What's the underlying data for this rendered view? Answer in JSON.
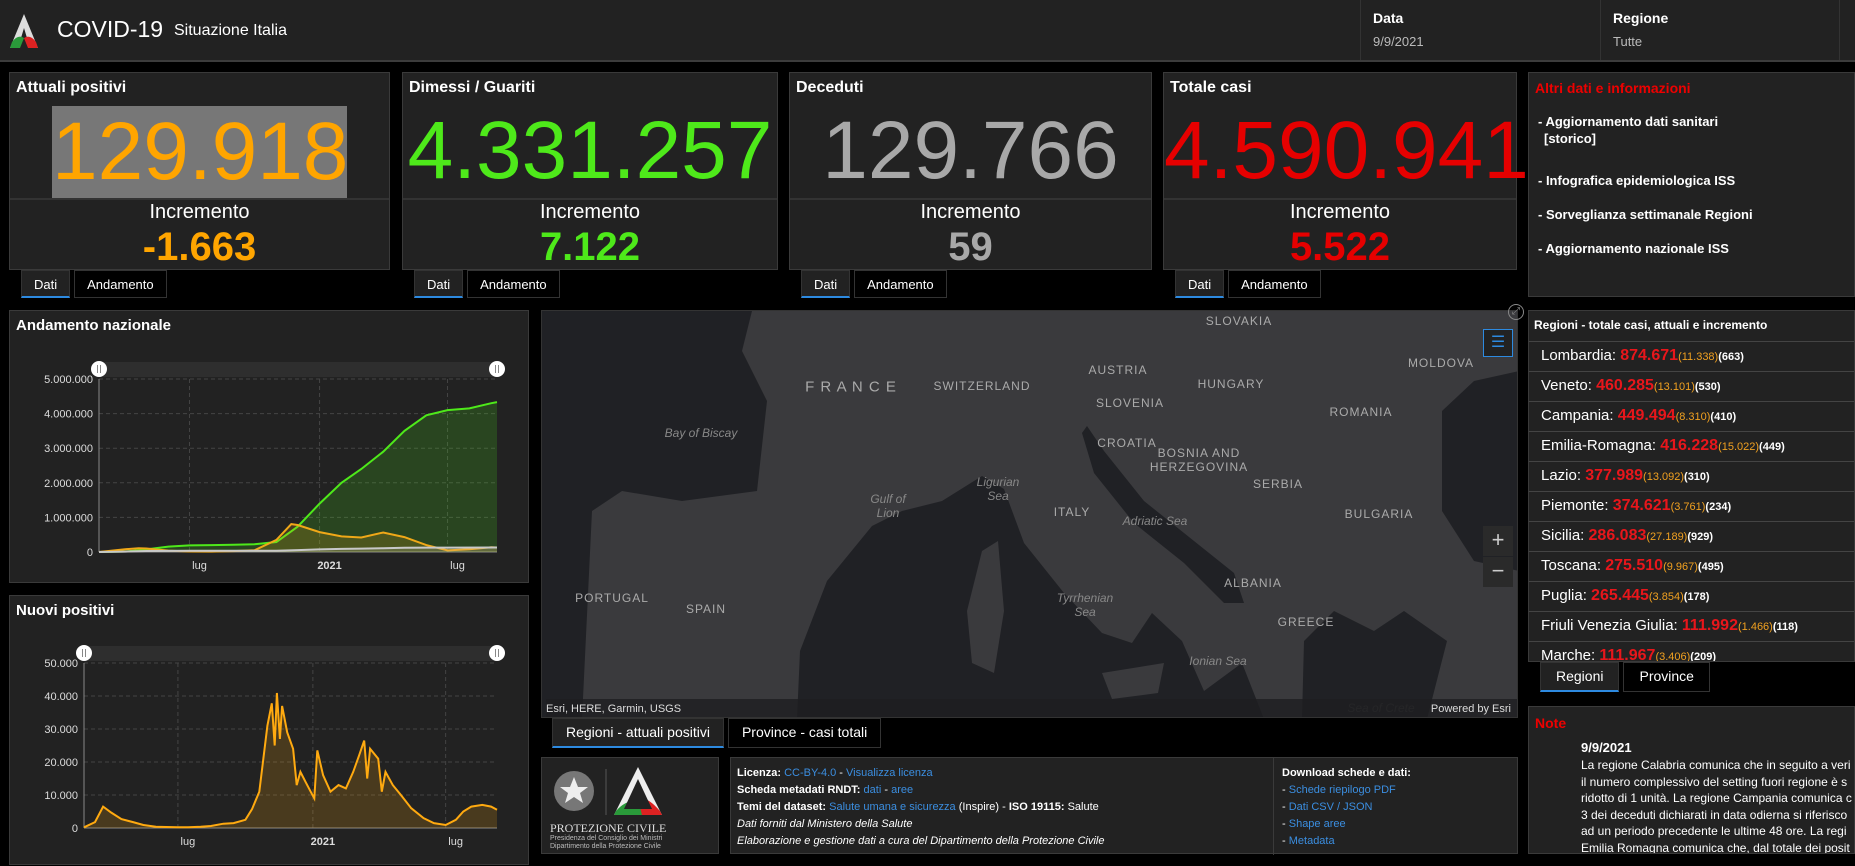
{
  "header": {
    "title": "COVID-19",
    "subtitle": "Situazione Italia",
    "date_label": "Data",
    "date_value": "9/9/2021",
    "region_label": "Regione",
    "region_value": "Tutte"
  },
  "colors": {
    "attuali": "#ffa500",
    "guariti": "#4ee91a",
    "deceduti": "#a8a8a8",
    "totale": "#e60000",
    "accent": "#2d8ae0"
  },
  "cards": [
    {
      "title": "Attuali positivi",
      "value": "129.918",
      "inc_label": "Incremento",
      "inc_value": "-1.663",
      "tabs": [
        "Dati",
        "Andamento"
      ]
    },
    {
      "title": "Dimessi / Guariti",
      "value": "4.331.257",
      "inc_label": "Incremento",
      "inc_value": "7.122",
      "tabs": [
        "Dati",
        "Andamento"
      ]
    },
    {
      "title": "Deceduti",
      "value": "129.766",
      "inc_label": "Incremento",
      "inc_value": "59",
      "tabs": [
        "Dati",
        "Andamento"
      ]
    },
    {
      "title": "Totale casi",
      "value": "4.590.941",
      "inc_label": "Incremento",
      "inc_value": "5.522",
      "tabs": [
        "Dati",
        "Andamento"
      ]
    }
  ],
  "other_info": {
    "title": "Altri dati e informazioni",
    "items": [
      "- Aggiornamento dati sanitari",
      "[storico]",
      "- Infografica epidemiologica ISS",
      "- Sorveglianza settimanale Regioni",
      "- Aggiornamento nazionale ISS"
    ]
  },
  "regions": {
    "title": "Regioni - totale casi, attuali e incremento",
    "tabs": [
      "Regioni",
      "Province"
    ],
    "rows": [
      {
        "name": "Lombardia:",
        "total": "874.671",
        "attuali": "(11.338)",
        "inc": "(663)"
      },
      {
        "name": "Veneto:",
        "total": "460.285",
        "attuali": "(13.101)",
        "inc": "(530)"
      },
      {
        "name": "Campania:",
        "total": "449.494",
        "attuali": "(8.310)",
        "inc": "(410)"
      },
      {
        "name": "Emilia-Romagna:",
        "total": "416.228",
        "attuali": "(15.022)",
        "inc": "(449)"
      },
      {
        "name": "Lazio:",
        "total": "377.989",
        "attuali": "(13.092)",
        "inc": "(310)"
      },
      {
        "name": "Piemonte:",
        "total": "374.621",
        "attuali": "(3.761)",
        "inc": "(234)"
      },
      {
        "name": "Sicilia:",
        "total": "286.083",
        "attuali": "(27.189)",
        "inc": "(929)"
      },
      {
        "name": "Toscana:",
        "total": "275.510",
        "attuali": "(9.967)",
        "inc": "(495)"
      },
      {
        "name": "Puglia:",
        "total": "265.445",
        "attuali": "(3.854)",
        "inc": "(178)"
      },
      {
        "name": "Friuli Venezia Giulia:",
        "total": "111.992",
        "attuali": "(1.466)",
        "inc": "(118)"
      },
      {
        "name": "Marche:",
        "total": "111.967",
        "attuali": "(3.406)",
        "inc": "(209)"
      }
    ]
  },
  "map": {
    "attribution": "Esri, HERE, Garmin, USGS",
    "powered": "Powered by Esri",
    "tabs": [
      "Regioni - attuali positivi",
      "Province - casi totali"
    ],
    "labels": [
      "SLOVAKIA",
      "AUSTRIA",
      "F R A N C E",
      "SWITZERLAND",
      "HUNGARY",
      "MOLDOVA",
      "SLOVENIA",
      "ROMANIA",
      "CROATIA",
      "BOSNIA AND HERZEGOVINA",
      "SERBIA",
      "ITALY",
      "BULGARIA",
      "ALBANIA",
      "PORTUGAL",
      "SPAIN",
      "GREECE"
    ],
    "seas": [
      "Bay of Biscay",
      "Ligurian Sea",
      "Gulf of Lion",
      "Adriatic Sea",
      "Tyrrhenian Sea",
      "Ionian Sea",
      "Sea of Crete"
    ]
  },
  "logo": {
    "name": "PROTEZIONE CIVILE",
    "line1": "Presidenza del Consiglio dei Ministri",
    "line2": "Dipartimento della Protezione Civile"
  },
  "info": {
    "lic_label": "Licenza:",
    "lic_link": "CC-BY-4.0",
    "sep": " - ",
    "lic_view": "Visualizza licenza",
    "rndt_label": "Scheda metadati RNDT:",
    "rndt_dati": "dati",
    "rndt_aree": "aree",
    "temi_label": "Temi del dataset:",
    "temi_link": "Salute umana e sicurezza",
    "temi_rest": " (Inspire) - ",
    "iso_label": "ISO 19115:",
    "iso_val": " Salute",
    "line4": "Dati forniti dal Ministero della Salute",
    "line5": "Elaborazione e gestione dati a cura del Dipartimento della Protezione Civile",
    "dl_title": "Download schede e dati:",
    "dl_links": [
      "Schede riepilogo PDF",
      "Dati CSV / JSON",
      "Shape aree",
      "Metadata"
    ]
  },
  "note": {
    "title": "Note",
    "date": "9/9/2021",
    "lines": [
      "La regione Calabria comunica che in seguito a veri",
      "il numero complessivo del setting fuori regione è s",
      "ridotto di 1 unità. La regione Campania comunica c",
      "3 dei deceduti dichiarati in data odierna si riferisco",
      "ad un periodo precedente le ultime 48 ore. La regi",
      "Emilia Romagna comunica che, dal totale dei posit"
    ]
  },
  "chart_data": [
    {
      "type": "area",
      "title": "Andamento nazionale",
      "ylim": [
        0,
        5000000
      ],
      "yticks": [
        "0",
        "1.000.000",
        "2.000.000",
        "3.000.000",
        "4.000.000",
        "5.000.000"
      ],
      "ytick_values": [
        0,
        1000000,
        2000000,
        3000000,
        4000000,
        5000000
      ],
      "xlim": [
        "2020-02-24",
        "2021-09-09"
      ],
      "xticks": [
        {
          "date": "2020-07-01",
          "label": "lug"
        },
        {
          "date": "2021-01-01",
          "label": "2021"
        },
        {
          "date": "2021-07-01",
          "label": "lug"
        }
      ],
      "grid": true,
      "series": [
        {
          "color": "#4ee91a",
          "points": [
            [
              "2020-02-24",
              0
            ],
            [
              "2020-04-01",
              15000
            ],
            [
              "2020-05-01",
              75000
            ],
            [
              "2020-06-01",
              155000
            ],
            [
              "2020-07-01",
              190000
            ],
            [
              "2020-08-01",
              200000
            ],
            [
              "2020-09-01",
              208000
            ],
            [
              "2020-10-01",
              225000
            ],
            [
              "2020-11-01",
              290000
            ],
            [
              "2020-12-01",
              730000
            ],
            [
              "2021-01-01",
              1400000
            ],
            [
              "2021-02-01",
              2000000
            ],
            [
              "2021-03-01",
              2400000
            ],
            [
              "2021-04-01",
              2900000
            ],
            [
              "2021-05-01",
              3500000
            ],
            [
              "2021-06-01",
              3950000
            ],
            [
              "2021-07-01",
              4100000
            ],
            [
              "2021-08-01",
              4150000
            ],
            [
              "2021-09-01",
              4300000
            ],
            [
              "2021-09-09",
              4331257
            ]
          ]
        },
        {
          "color": "#f0a818",
          "points": [
            [
              "2020-02-24",
              200
            ],
            [
              "2020-04-01",
              80000
            ],
            [
              "2020-04-20",
              108000
            ],
            [
              "2020-05-01",
              100000
            ],
            [
              "2020-06-01",
              40000
            ],
            [
              "2020-07-01",
              15000
            ],
            [
              "2020-08-01",
              12000
            ],
            [
              "2020-09-01",
              27000
            ],
            [
              "2020-10-01",
              50000
            ],
            [
              "2020-11-01",
              350000
            ],
            [
              "2020-11-22",
              805000
            ],
            [
              "2020-12-01",
              780000
            ],
            [
              "2021-01-01",
              575000
            ],
            [
              "2021-02-01",
              450000
            ],
            [
              "2021-03-01",
              420000
            ],
            [
              "2021-04-01",
              565000
            ],
            [
              "2021-05-01",
              430000
            ],
            [
              "2021-06-01",
              200000
            ],
            [
              "2021-07-01",
              45000
            ],
            [
              "2021-08-01",
              80000
            ],
            [
              "2021-09-01",
              135000
            ],
            [
              "2021-09-09",
              129918
            ]
          ]
        },
        {
          "color": "#c8c8c8",
          "points": [
            [
              "2020-02-24",
              0
            ],
            [
              "2020-04-01",
              13000
            ],
            [
              "2020-05-01",
              28000
            ],
            [
              "2020-06-01",
              33000
            ],
            [
              "2020-07-01",
              35000
            ],
            [
              "2020-10-01",
              36000
            ],
            [
              "2020-11-01",
              39000
            ],
            [
              "2020-12-01",
              56000
            ],
            [
              "2021-01-01",
              74000
            ],
            [
              "2021-02-01",
              89000
            ],
            [
              "2021-03-01",
              98000
            ],
            [
              "2021-04-01",
              110000
            ],
            [
              "2021-05-01",
              121000
            ],
            [
              "2021-06-01",
              126000
            ],
            [
              "2021-07-01",
              127600
            ],
            [
              "2021-09-09",
              129766
            ]
          ]
        }
      ]
    },
    {
      "type": "area",
      "title": "Nuovi positivi",
      "ylim": [
        0,
        50000
      ],
      "yticks": [
        "0",
        "10.000",
        "20.000",
        "30.000",
        "40.000",
        "50.000"
      ],
      "ytick_values": [
        0,
        10000,
        20000,
        30000,
        40000,
        50000
      ],
      "xlim": [
        "2020-02-24",
        "2021-09-09"
      ],
      "xticks": [
        {
          "date": "2020-07-01",
          "label": "lug"
        },
        {
          "date": "2021-01-01",
          "label": "2021"
        },
        {
          "date": "2021-07-01",
          "label": "lug"
        }
      ],
      "grid": true,
      "series": [
        {
          "color": "#ffaa10",
          "points": [
            [
              "2020-02-24",
              200
            ],
            [
              "2020-03-10",
              1800
            ],
            [
              "2020-03-21",
              6500
            ],
            [
              "2020-04-01",
              4700
            ],
            [
              "2020-04-15",
              2700
            ],
            [
              "2020-05-01",
              1800
            ],
            [
              "2020-05-15",
              900
            ],
            [
              "2020-06-01",
              350
            ],
            [
              "2020-06-15",
              300
            ],
            [
              "2020-07-01",
              200
            ],
            [
              "2020-07-15",
              250
            ],
            [
              "2020-08-01",
              350
            ],
            [
              "2020-08-15",
              600
            ],
            [
              "2020-09-01",
              1300
            ],
            [
              "2020-09-15",
              1500
            ],
            [
              "2020-10-01",
              2500
            ],
            [
              "2020-10-10",
              5700
            ],
            [
              "2020-10-20",
              11000
            ],
            [
              "2020-10-31",
              31000
            ],
            [
              "2020-11-06",
              37800
            ],
            [
              "2020-11-10",
              25000
            ],
            [
              "2020-11-13",
              40900
            ],
            [
              "2020-11-17",
              27000
            ],
            [
              "2020-11-20",
              37000
            ],
            [
              "2020-11-27",
              29000
            ],
            [
              "2020-12-05",
              24000
            ],
            [
              "2020-12-10",
              13000
            ],
            [
              "2020-12-15",
              17000
            ],
            [
              "2020-12-22",
              14000
            ],
            [
              "2020-12-29",
              11000
            ],
            [
              "2021-01-03",
              9000
            ],
            [
              "2021-01-07",
              23500
            ],
            [
              "2021-01-15",
              16000
            ],
            [
              "2021-01-25",
              11000
            ],
            [
              "2021-02-05",
              13000
            ],
            [
              "2021-02-15",
              12000
            ],
            [
              "2021-02-25",
              17000
            ],
            [
              "2021-03-05",
              22000
            ],
            [
              "2021-03-12",
              26500
            ],
            [
              "2021-03-16",
              15000
            ],
            [
              "2021-03-20",
              24000
            ],
            [
              "2021-03-31",
              21000
            ],
            [
              "2021-04-05",
              11000
            ],
            [
              "2021-04-10",
              17000
            ],
            [
              "2021-04-20",
              13000
            ],
            [
              "2021-05-01",
              10000
            ],
            [
              "2021-05-15",
              6000
            ],
            [
              "2021-06-01",
              3000
            ],
            [
              "2021-06-15",
              1500
            ],
            [
              "2021-07-01",
              900
            ],
            [
              "2021-07-15",
              2500
            ],
            [
              "2021-07-25",
              5000
            ],
            [
              "2021-08-05",
              6500
            ],
            [
              "2021-08-20",
              7000
            ],
            [
              "2021-09-01",
              6500
            ],
            [
              "2021-09-09",
              5522
            ]
          ]
        }
      ]
    }
  ]
}
